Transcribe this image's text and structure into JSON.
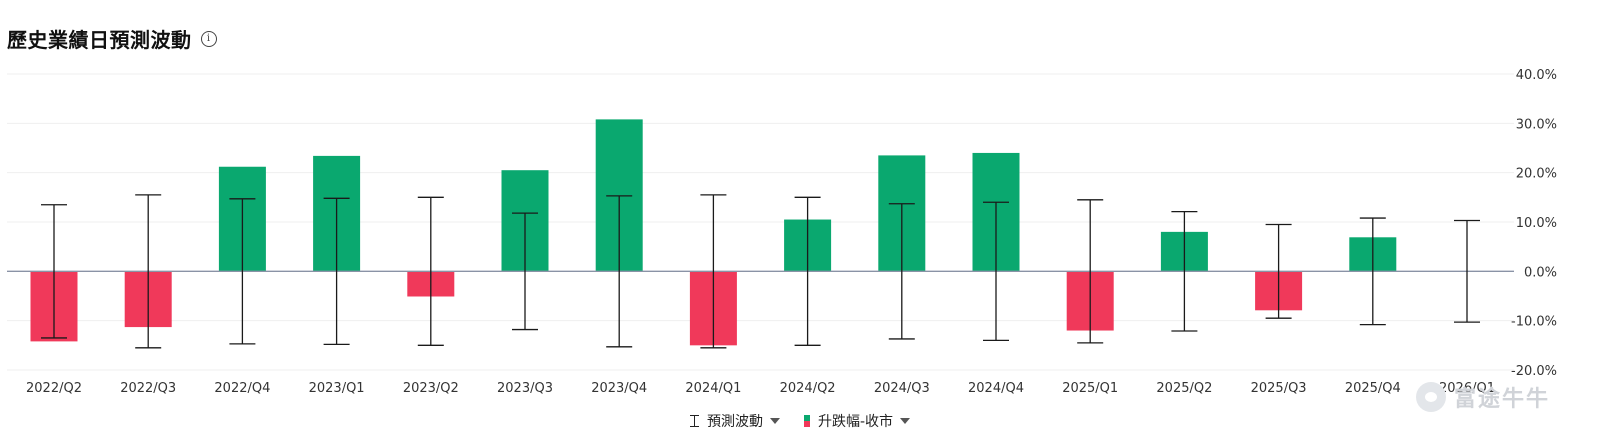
{
  "header": {
    "title": "歷史業績日預測波動",
    "info_icon": "info-circle-icon"
  },
  "chart_data": {
    "type": "bar",
    "title": "歷史業績日預測波動",
    "categories": [
      "2022/Q2",
      "2022/Q3",
      "2022/Q4",
      "2023/Q1",
      "2023/Q2",
      "2023/Q3",
      "2023/Q4",
      "2024/Q1",
      "2024/Q2",
      "2024/Q3",
      "2024/Q4",
      "2025/Q1",
      "2025/Q2",
      "2025/Q3",
      "2025/Q4",
      "2026/Q1"
    ],
    "series": [
      {
        "name": "升跌幅-收市",
        "type": "bar",
        "values": [
          -14.2,
          -11.3,
          21.2,
          23.4,
          -5.1,
          20.5,
          30.8,
          -15.0,
          10.5,
          23.5,
          24.0,
          -12.0,
          8.0,
          -7.9,
          6.9,
          null
        ]
      },
      {
        "name": "預測波動",
        "type": "errorbar",
        "values": [
          13.5,
          15.5,
          14.7,
          14.8,
          15.0,
          11.8,
          15.3,
          15.5,
          15.0,
          13.7,
          14.0,
          14.5,
          12.1,
          9.5,
          10.8,
          10.3
        ]
      }
    ],
    "ylim": [
      -20,
      40
    ],
    "yticks": [
      "40.0%",
      "30.0%",
      "20.0%",
      "10.0%",
      "0.0%",
      "-10.0%",
      "-20.0%"
    ],
    "ytick_values": [
      40,
      30,
      20,
      10,
      0,
      -10,
      -20
    ],
    "colors": {
      "up": "#0aa86f",
      "down": "#f0395a",
      "errorbar": "#1a1a1a",
      "zero_line": "#8a93a6",
      "grid": "#efefef"
    },
    "grid": true,
    "legend_position": "bottom-center"
  },
  "legend": {
    "items": [
      {
        "label": "預測波動",
        "icon": "errorbar-icon"
      },
      {
        "label": "升跌幅-收市",
        "icon": "up-down-swatch-icon"
      }
    ]
  },
  "watermark": {
    "text": "富途牛牛"
  }
}
